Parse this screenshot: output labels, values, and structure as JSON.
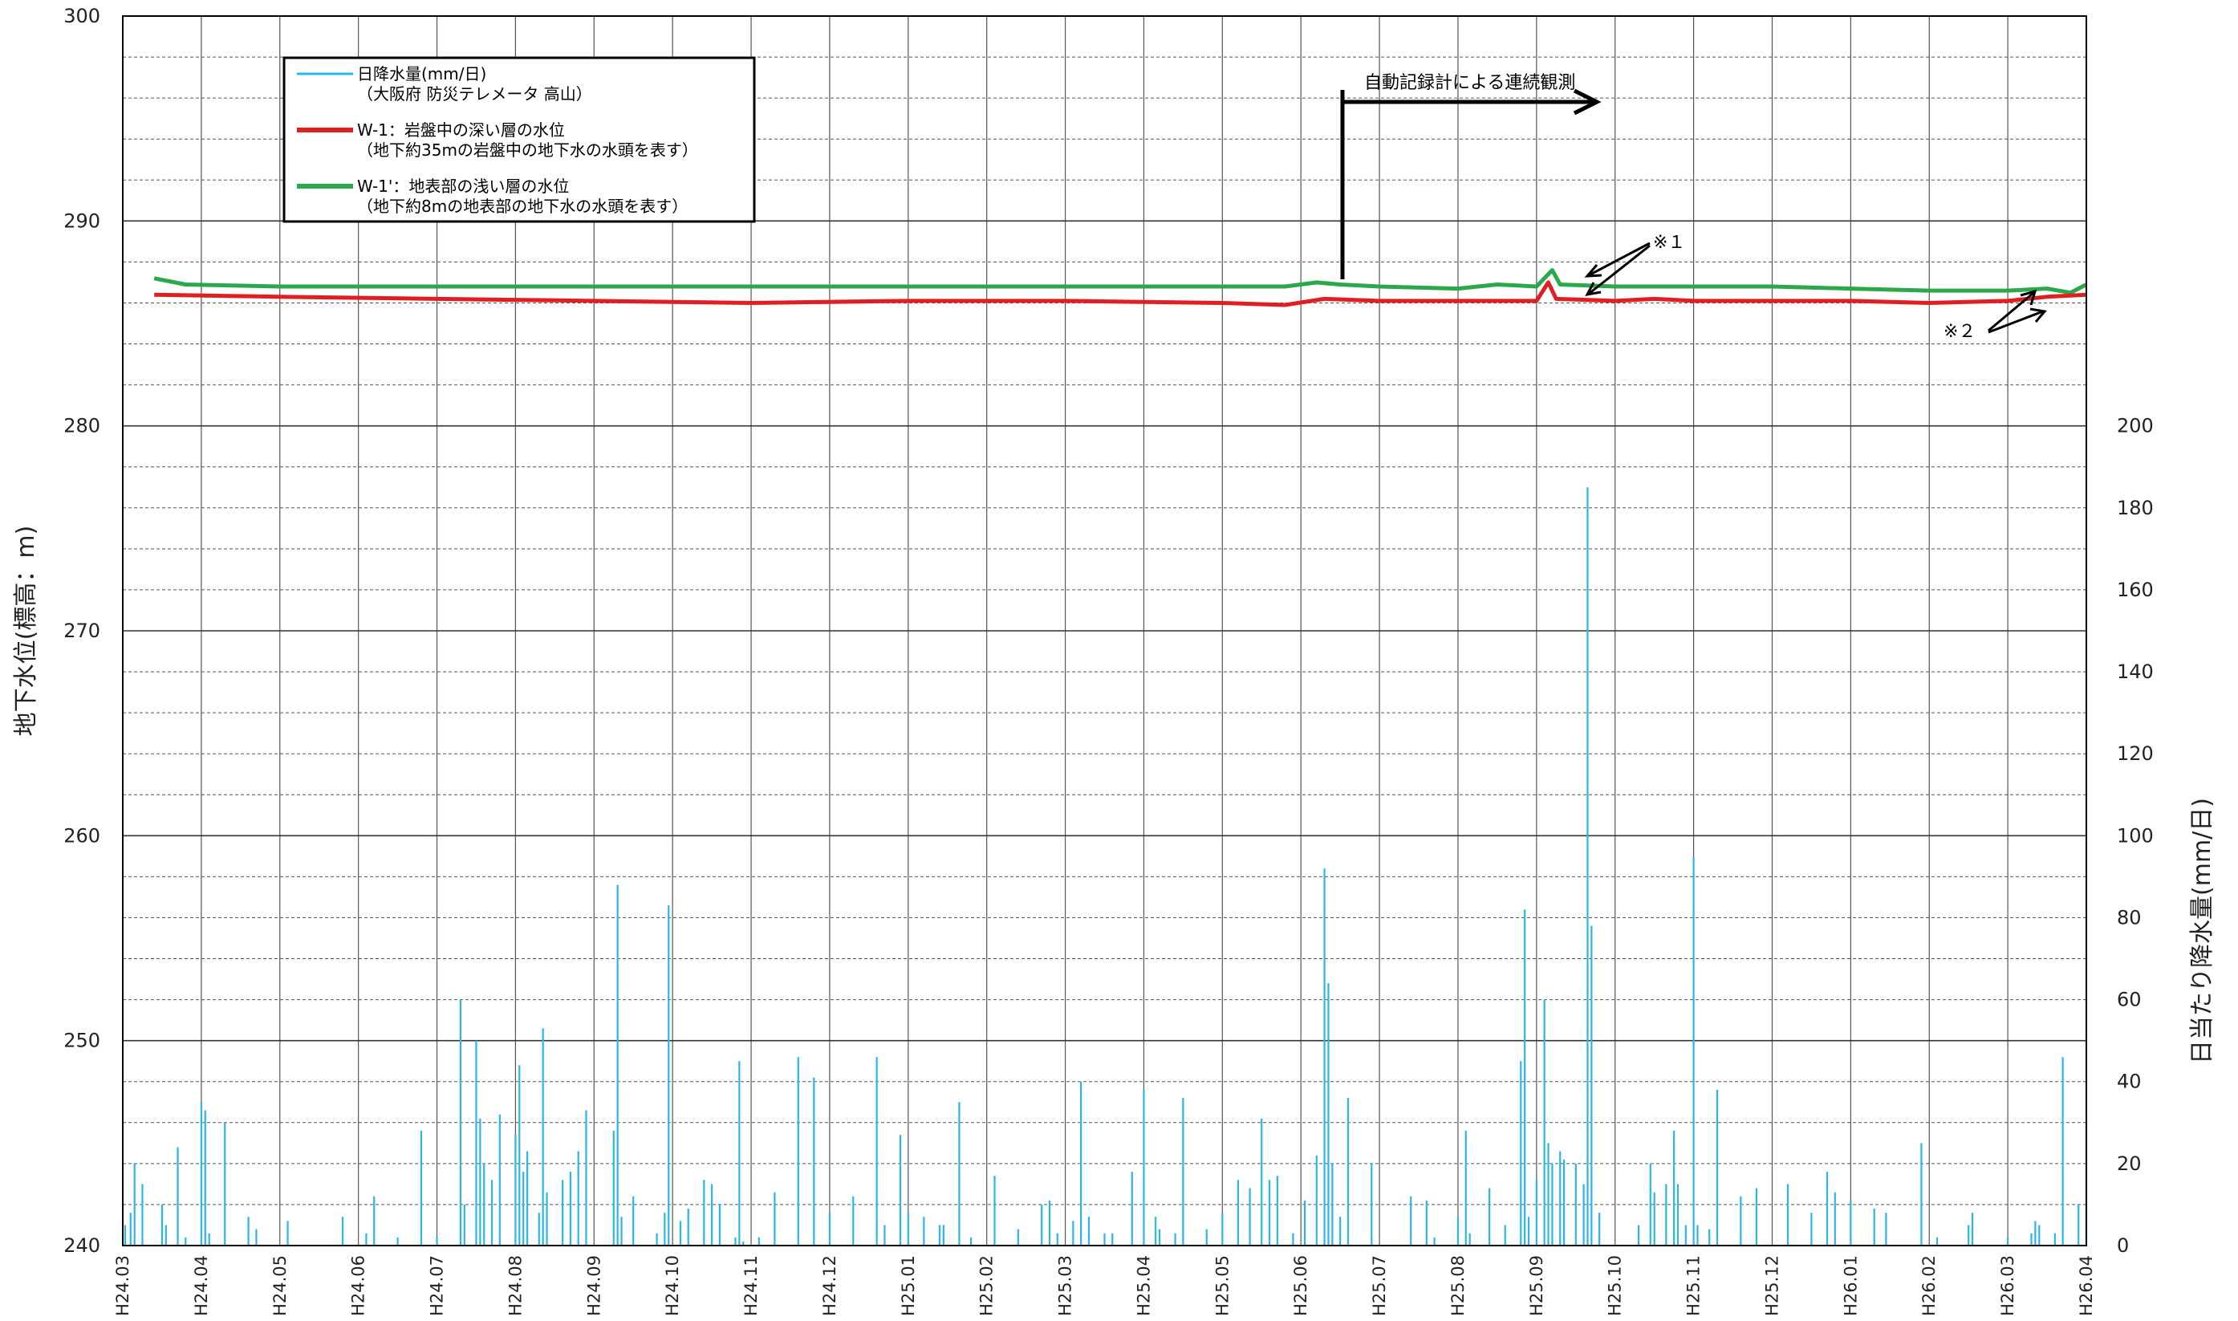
{
  "chart_data": {
    "type": "line",
    "y_left": {
      "label": "地下水位(標高：m)",
      "range": [
        240,
        300
      ],
      "ticks": [
        "240",
        "250",
        "260",
        "270",
        "280",
        "290",
        "300"
      ]
    },
    "y_right": {
      "label": "日当たり降水量(mm/日)",
      "range": [
        0,
        200
      ],
      "ticks": [
        "0",
        "20",
        "40",
        "60",
        "80",
        "100",
        "120",
        "140",
        "160",
        "180",
        "200"
      ]
    },
    "x": {
      "ticks": [
        "H24.03",
        "H24.04",
        "H24.05",
        "H24.06",
        "H24.07",
        "H24.08",
        "H24.09",
        "H24.10",
        "H24.11",
        "H24.12",
        "H25.01",
        "H25.02",
        "H25.03",
        "H25.04",
        "H25.05",
        "H25.06",
        "H25.07",
        "H25.08",
        "H25.09",
        "H25.10",
        "H25.11",
        "H25.12",
        "H26.01",
        "H26.02",
        "H26.03",
        "H26.04"
      ]
    },
    "grid": true,
    "legend": {
      "placement": "top-left",
      "entries": [
        {
          "line1": "日降水量(mm/日)",
          "line2": "（大阪府 防災テレメータ 高山）",
          "color": "#29b6e8"
        },
        {
          "line1": "W-1：岩盤中の深い層の水位",
          "line2": "（地下約35mの岩盤中の地下水の水頭を表す）",
          "color": "#e02020"
        },
        {
          "line1": "W-1'：地表部の浅い層の水位",
          "line2": "（地下約8mの地表部の地下水の水頭を表す）",
          "color": "#2aa84a"
        }
      ]
    },
    "annotations": {
      "auto_record": "自動記録計による連続観測",
      "note1": "※１",
      "note2": "※２"
    },
    "series": [
      {
        "name": "W-1'：地表部の浅い層の水位",
        "color": "#2aa84a",
        "axis": "left",
        "points": [
          [
            0.4,
            287.2
          ],
          [
            0.8,
            286.9
          ],
          [
            2,
            286.8
          ],
          [
            4,
            286.8
          ],
          [
            6,
            286.8
          ],
          [
            8,
            286.8
          ],
          [
            10,
            286.8
          ],
          [
            12,
            286.8
          ],
          [
            14,
            286.8
          ],
          [
            14.8,
            286.8
          ],
          [
            15.2,
            287.0
          ],
          [
            15.5,
            286.9
          ],
          [
            16,
            286.8
          ],
          [
            17,
            286.7
          ],
          [
            17.5,
            286.9
          ],
          [
            18,
            286.8
          ],
          [
            18.2,
            287.6
          ],
          [
            18.3,
            286.9
          ],
          [
            19,
            286.8
          ],
          [
            20,
            286.8
          ],
          [
            21,
            286.8
          ],
          [
            22,
            286.7
          ],
          [
            23,
            286.6
          ],
          [
            24,
            286.6
          ],
          [
            24.5,
            286.7
          ],
          [
            24.8,
            286.5
          ],
          [
            25,
            286.9
          ]
        ]
      },
      {
        "name": "W-1：岩盤中の深い層の水位",
        "color": "#e02020",
        "axis": "left",
        "points": [
          [
            0.4,
            286.4
          ],
          [
            2,
            286.3
          ],
          [
            4,
            286.2
          ],
          [
            6,
            286.1
          ],
          [
            8,
            286.0
          ],
          [
            10,
            286.1
          ],
          [
            12,
            286.1
          ],
          [
            14,
            286.0
          ],
          [
            14.8,
            285.9
          ],
          [
            15.3,
            286.2
          ],
          [
            16,
            286.1
          ],
          [
            17,
            286.1
          ],
          [
            18,
            286.1
          ],
          [
            18.15,
            287.0
          ],
          [
            18.25,
            286.2
          ],
          [
            19,
            286.1
          ],
          [
            19.5,
            286.2
          ],
          [
            20,
            286.1
          ],
          [
            22,
            286.1
          ],
          [
            23,
            286.0
          ],
          [
            24,
            286.1
          ],
          [
            24.5,
            286.3
          ],
          [
            25,
            286.4
          ]
        ]
      },
      {
        "name": "日降水量(mm/日)",
        "type": "bar",
        "color": "#29b6e8",
        "axis": "right",
        "points": [
          [
            0.03,
            5
          ],
          [
            0.1,
            8
          ],
          [
            0.15,
            20
          ],
          [
            0.25,
            15
          ],
          [
            0.5,
            10
          ],
          [
            0.55,
            5
          ],
          [
            0.7,
            24
          ],
          [
            0.8,
            2
          ],
          [
            1.0,
            35
          ],
          [
            1.05,
            33
          ],
          [
            1.1,
            3
          ],
          [
            1.3,
            30
          ],
          [
            1.6,
            7
          ],
          [
            1.7,
            4
          ],
          [
            2.1,
            6
          ],
          [
            2.8,
            7
          ],
          [
            3.1,
            3
          ],
          [
            3.2,
            12
          ],
          [
            3.5,
            2
          ],
          [
            3.8,
            28
          ],
          [
            4.0,
            2
          ],
          [
            4.3,
            60
          ],
          [
            4.35,
            10
          ],
          [
            4.5,
            50
          ],
          [
            4.55,
            31
          ],
          [
            4.6,
            20
          ],
          [
            4.7,
            16
          ],
          [
            4.8,
            32
          ],
          [
            5.0,
            27
          ],
          [
            5.05,
            44
          ],
          [
            5.1,
            18
          ],
          [
            5.15,
            23
          ],
          [
            5.3,
            8
          ],
          [
            5.35,
            53
          ],
          [
            5.4,
            13
          ],
          [
            5.6,
            16
          ],
          [
            5.7,
            18
          ],
          [
            5.8,
            23
          ],
          [
            5.9,
            33
          ],
          [
            6.25,
            28
          ],
          [
            6.3,
            88
          ],
          [
            6.35,
            7
          ],
          [
            6.5,
            12
          ],
          [
            6.8,
            3
          ],
          [
            6.9,
            8
          ],
          [
            6.95,
            83
          ],
          [
            7.1,
            6
          ],
          [
            7.2,
            9
          ],
          [
            7.4,
            16
          ],
          [
            7.5,
            15
          ],
          [
            7.6,
            10
          ],
          [
            7.8,
            2
          ],
          [
            7.85,
            45
          ],
          [
            7.9,
            1
          ],
          [
            8.1,
            2
          ],
          [
            8.3,
            13
          ],
          [
            8.6,
            46
          ],
          [
            8.8,
            41
          ],
          [
            9.0,
            8
          ],
          [
            9.3,
            12
          ],
          [
            9.6,
            46
          ],
          [
            9.7,
            5
          ],
          [
            9.9,
            27
          ],
          [
            10.0,
            8
          ],
          [
            10.2,
            7
          ],
          [
            10.4,
            5
          ],
          [
            10.45,
            5
          ],
          [
            10.65,
            35
          ],
          [
            10.8,
            2
          ],
          [
            11.1,
            17
          ],
          [
            11.4,
            4
          ],
          [
            11.7,
            10
          ],
          [
            11.8,
            11
          ],
          [
            11.9,
            3
          ],
          [
            12.1,
            6
          ],
          [
            12.2,
            40
          ],
          [
            12.3,
            7
          ],
          [
            12.5,
            3
          ],
          [
            12.6,
            3
          ],
          [
            12.85,
            18
          ],
          [
            13.0,
            38
          ],
          [
            13.15,
            7
          ],
          [
            13.2,
            4
          ],
          [
            13.4,
            3
          ],
          [
            13.5,
            36
          ],
          [
            13.8,
            4
          ],
          [
            14.0,
            8
          ],
          [
            14.2,
            16
          ],
          [
            14.35,
            14
          ],
          [
            14.5,
            31
          ],
          [
            14.6,
            16
          ],
          [
            14.7,
            17
          ],
          [
            14.9,
            3
          ],
          [
            15.05,
            11
          ],
          [
            15.2,
            22
          ],
          [
            15.3,
            92
          ],
          [
            15.35,
            64
          ],
          [
            15.4,
            20
          ],
          [
            15.5,
            7
          ],
          [
            15.6,
            36
          ],
          [
            15.9,
            20
          ],
          [
            16.4,
            12
          ],
          [
            16.6,
            11
          ],
          [
            16.7,
            2
          ],
          [
            17.0,
            7
          ],
          [
            17.1,
            28
          ],
          [
            17.15,
            3
          ],
          [
            17.4,
            14
          ],
          [
            17.6,
            5
          ],
          [
            17.8,
            45
          ],
          [
            17.85,
            82
          ],
          [
            17.9,
            7
          ],
          [
            18.0,
            16
          ],
          [
            18.1,
            60
          ],
          [
            18.15,
            25
          ],
          [
            18.2,
            20
          ],
          [
            18.3,
            23
          ],
          [
            18.35,
            21
          ],
          [
            18.5,
            20
          ],
          [
            18.6,
            15
          ],
          [
            18.65,
            185
          ],
          [
            18.7,
            78
          ],
          [
            18.8,
            8
          ],
          [
            19.3,
            5
          ],
          [
            19.45,
            20
          ],
          [
            19.5,
            13
          ],
          [
            19.65,
            15
          ],
          [
            19.75,
            28
          ],
          [
            19.8,
            15
          ],
          [
            19.9,
            5
          ],
          [
            20.0,
            95
          ],
          [
            20.05,
            5
          ],
          [
            20.2,
            4
          ],
          [
            20.3,
            38
          ],
          [
            20.6,
            12
          ],
          [
            20.8,
            14
          ],
          [
            21.2,
            15
          ],
          [
            21.5,
            8
          ],
          [
            21.7,
            18
          ],
          [
            21.8,
            13
          ],
          [
            22.0,
            11
          ],
          [
            22.3,
            9
          ],
          [
            22.45,
            8
          ],
          [
            22.9,
            25
          ],
          [
            23.1,
            2
          ],
          [
            23.5,
            5
          ],
          [
            23.55,
            8
          ],
          [
            24.0,
            2
          ],
          [
            24.3,
            3
          ],
          [
            24.35,
            6
          ],
          [
            24.4,
            5
          ],
          [
            24.6,
            3
          ],
          [
            24.7,
            46
          ],
          [
            24.9,
            10
          ],
          [
            25.0,
            30
          ]
        ]
      }
    ]
  }
}
